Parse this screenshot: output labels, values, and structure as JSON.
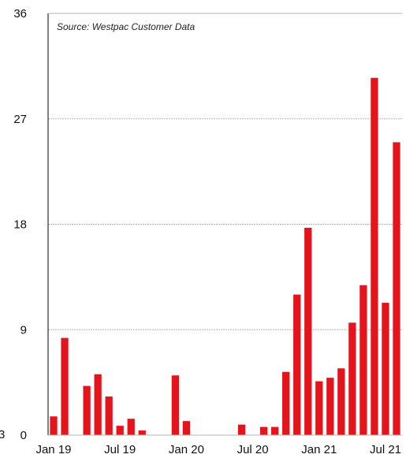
{
  "chart_data": {
    "type": "bar",
    "annotation": "Source: Westpac Customer Data",
    "edge_label": "3",
    "x": [
      "Jan 19",
      "Feb 19",
      "Mar 19",
      "Apr 19",
      "May 19",
      "Jun 19",
      "Jul 19",
      "Aug 19",
      "Sep 19",
      "Oct 19",
      "Nov 19",
      "Dec 19",
      "Jan 20",
      "Feb 20",
      "Mar 20",
      "Apr 20",
      "May 20",
      "Jun 20",
      "Jul 20",
      "Aug 20",
      "Sep 20",
      "Oct 20",
      "Nov 20",
      "Dec 20",
      "Jan 21",
      "Feb 21",
      "Mar 21",
      "Apr 21",
      "May 21",
      "Jun 21",
      "Jul 21",
      "Aug 21"
    ],
    "values": [
      1.6,
      8.3,
      0,
      4.2,
      5.2,
      3.3,
      0.8,
      1.4,
      0.4,
      0,
      0,
      5.1,
      1.2,
      0,
      0,
      0,
      0,
      0.9,
      0,
      0.7,
      0.7,
      5.4,
      12.0,
      17.7,
      4.6,
      4.9,
      5.7,
      9.6,
      12.8,
      30.5,
      11.3,
      25.0
    ],
    "xticks": [
      "Jan 19",
      "Jul 19",
      "Jan 20",
      "Jul 20",
      "Jan 21",
      "Jul 21"
    ],
    "xtick_index": [
      0,
      6,
      12,
      18,
      24,
      30
    ],
    "yticks": [
      0,
      9,
      18,
      27,
      36
    ],
    "ylim": [
      0,
      36
    ],
    "grid": true,
    "colors": {
      "bar": "#e3141b",
      "grid": "#b5b5b5",
      "frame": "#000000"
    }
  }
}
